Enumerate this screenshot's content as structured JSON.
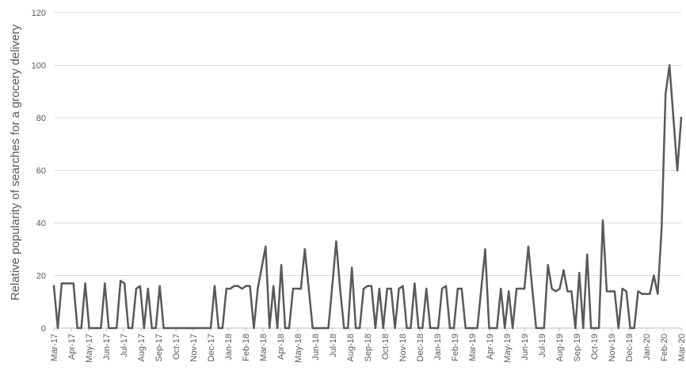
{
  "chart_data": {
    "type": "line",
    "title": "",
    "xlabel": "",
    "ylabel": "Relative popularity of searches for a grocery delivery",
    "ylim": [
      0,
      120
    ],
    "yticks": [
      0,
      20,
      40,
      60,
      80,
      100,
      120
    ],
    "grid": true,
    "legend": "none",
    "x_tick_labels": [
      "Mar-17",
      "Apr-17",
      "May-17",
      "Jun-17",
      "Jul-17",
      "Aug-17",
      "Sep-17",
      "Oct-17",
      "Nov-17",
      "Dec-17",
      "Jan-18",
      "Feb-18",
      "Mar-18",
      "Apr-18",
      "May-18",
      "Jun-18",
      "Jul-18",
      "Aug-18",
      "Sep-18",
      "Oct-18",
      "Nov-18",
      "Dec-18",
      "Jan-19",
      "Feb-19",
      "Mar-19",
      "Apr-19",
      "May-19",
      "Jun-19",
      "Jul-19",
      "Aug-19",
      "Sep-19",
      "Oct-19",
      "Nov-19",
      "Dec-19",
      "Jan-20",
      "Feb-20",
      "Mar-20"
    ],
    "line_color": "#595959",
    "series": [
      {
        "values": [
          16,
          0,
          17,
          17,
          17,
          17,
          0,
          0,
          17,
          0,
          0,
          0,
          0,
          17,
          0,
          0,
          0,
          18,
          17,
          0,
          0,
          15,
          16,
          0,
          15,
          0,
          0,
          16,
          0,
          0,
          0,
          0,
          0,
          0,
          0,
          0,
          0,
          0,
          0,
          0,
          0,
          16,
          0,
          0,
          15,
          15,
          16,
          16,
          15,
          16,
          16,
          0,
          15,
          23,
          31,
          0,
          16,
          0,
          24,
          0,
          0,
          15,
          15,
          15,
          30,
          15,
          0,
          0,
          0,
          0,
          0,
          16,
          33,
          15,
          0,
          0,
          23,
          0,
          0,
          15,
          16,
          16,
          0,
          15,
          0,
          15,
          15,
          0,
          15,
          16,
          0,
          0,
          17,
          0,
          0,
          15,
          0,
          0,
          0,
          15,
          16,
          0,
          0,
          15,
          15,
          0,
          0,
          0,
          0,
          15,
          30,
          0,
          0,
          0,
          15,
          0,
          14,
          0,
          15,
          15,
          15,
          31,
          15,
          0,
          0,
          0,
          24,
          15,
          14,
          15,
          22,
          14,
          14,
          0,
          21,
          0,
          28,
          0,
          0,
          0,
          41,
          14,
          14,
          14,
          0,
          15,
          14,
          0,
          0,
          14,
          13,
          13,
          13,
          20,
          13,
          38,
          89,
          100,
          80,
          60,
          80
        ]
      }
    ]
  }
}
